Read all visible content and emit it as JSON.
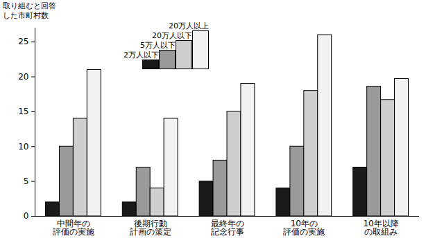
{
  "chart_data": {
    "type": "bar",
    "y_label": "取り組むと回答\nした市町村数",
    "categories": [
      "中間年の\n評価の実施",
      "後期行動\n計画の策定",
      "最終年の\n記念行事",
      "10年の\n評価の実施",
      "10年以降\nの取組み"
    ],
    "series": [
      {
        "name": "2万人以下",
        "color": "#1a1a1a",
        "values": [
          2,
          2,
          5,
          4,
          7
        ]
      },
      {
        "name": "5万人以下",
        "color": "#9a9a9a",
        "values": [
          10,
          7,
          8,
          10,
          18.6
        ]
      },
      {
        "name": "20万人以下",
        "color": "#cfcfcf",
        "values": [
          14,
          4,
          15,
          18,
          16.7
        ]
      },
      {
        "name": "20万人以上",
        "color": "#f2f2f2",
        "values": [
          21,
          14,
          19,
          26,
          19.7
        ]
      }
    ],
    "ylim": [
      0,
      27
    ],
    "yticks": [
      0,
      5,
      10,
      15,
      20,
      25
    ],
    "grid": false,
    "legend": "top"
  }
}
